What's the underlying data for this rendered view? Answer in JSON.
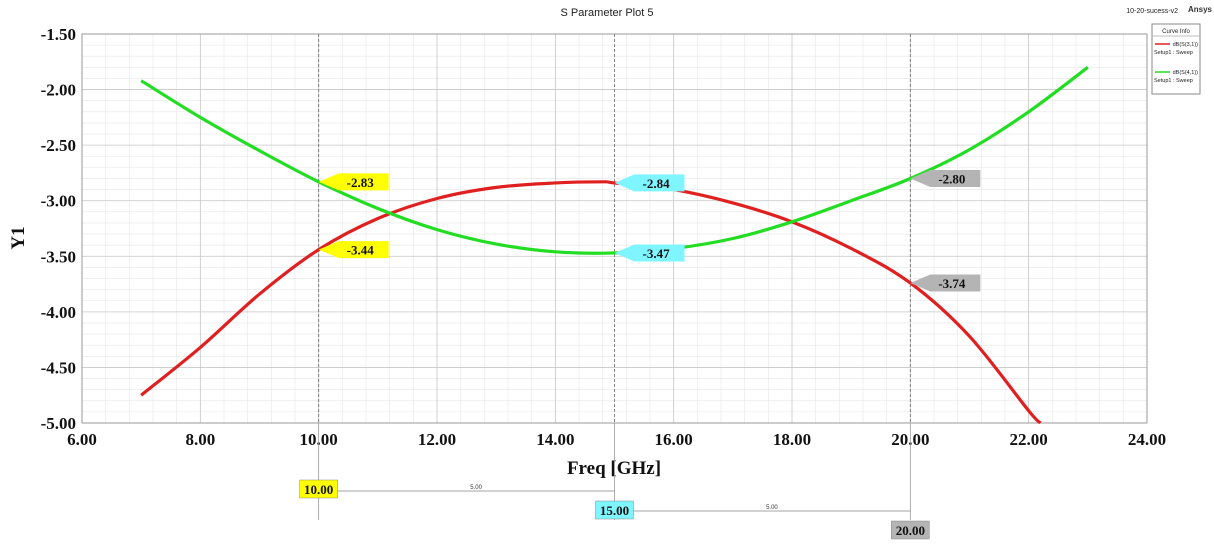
{
  "header": {
    "title": "S Parameter Plot 5",
    "project": "10-20-sucess-v2",
    "brand": "Ansys"
  },
  "chart_data": {
    "type": "line",
    "xlabel": "Freq [GHz]",
    "ylabel": "Y1",
    "xlim": [
      6.0,
      24.0
    ],
    "ylim": [
      -5.0,
      -1.5
    ],
    "x_ticks": [
      "6.00",
      "8.00",
      "10.00",
      "12.00",
      "14.00",
      "16.00",
      "18.00",
      "20.00",
      "22.00",
      "24.00"
    ],
    "y_ticks": [
      "-1.50",
      "-2.00",
      "-2.50",
      "-3.00",
      "-3.50",
      "-4.00",
      "-4.50",
      "-5.00"
    ],
    "grid": true,
    "legend": {
      "title": "Curve Info",
      "placement": "top-right"
    },
    "series": [
      {
        "name": "dB(S(3,1))",
        "setup": "Setup1 : Sweep",
        "color": "#e02020",
        "x": [
          7,
          8,
          9,
          10,
          11,
          12,
          13,
          14,
          14.8,
          15,
          16,
          17,
          18,
          19,
          20,
          21,
          22,
          22.2
        ],
        "y": [
          -4.75,
          -4.32,
          -3.84,
          -3.44,
          -3.16,
          -2.98,
          -2.88,
          -2.84,
          -2.83,
          -2.84,
          -2.9,
          -3.02,
          -3.19,
          -3.43,
          -3.74,
          -4.22,
          -4.89,
          -5.0
        ]
      },
      {
        "name": "dB(S(4,1))",
        "setup": "Setup1 : Sweep",
        "color": "#22dd22",
        "x": [
          7,
          8,
          9,
          10,
          11,
          12,
          13,
          14,
          15,
          16,
          17,
          18,
          19,
          20,
          21,
          22,
          23
        ],
        "y": [
          -1.92,
          -2.25,
          -2.55,
          -2.83,
          -3.07,
          -3.26,
          -3.39,
          -3.46,
          -3.47,
          -3.43,
          -3.34,
          -3.19,
          -3.0,
          -2.8,
          -2.54,
          -2.2,
          -1.8
        ]
      }
    ],
    "markers": [
      {
        "x": 10.0,
        "label": "10.00",
        "color": "#ffff00",
        "values": [
          {
            "y": -2.83,
            "label": "-2.83"
          },
          {
            "y": -3.44,
            "label": "-3.44"
          }
        ]
      },
      {
        "x": 15.0,
        "label": "15.00",
        "color": "#7ff5ff",
        "values": [
          {
            "y": -2.84,
            "label": "-2.84"
          },
          {
            "y": -3.47,
            "label": "-3.47"
          }
        ]
      },
      {
        "x": 20.0,
        "label": "20.00",
        "color": "#b4b4b4",
        "values": [
          {
            "y": -2.8,
            "label": "-2.80"
          },
          {
            "y": -3.74,
            "label": "-3.74"
          }
        ]
      }
    ],
    "marker_deltas": [
      {
        "from": 10.0,
        "to": 15.0,
        "label": "5.00"
      },
      {
        "from": 15.0,
        "to": 20.0,
        "label": "5.00"
      }
    ]
  }
}
